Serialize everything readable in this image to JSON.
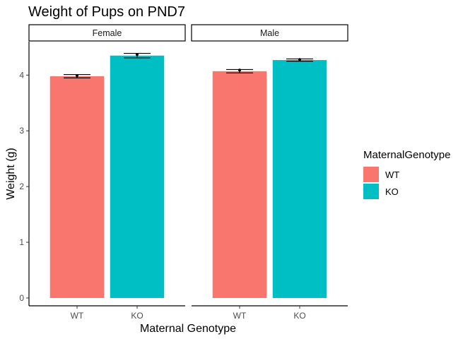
{
  "chart_data": {
    "type": "bar",
    "title": "Weight of Pups on PND7",
    "xlabel": "Maternal Genotype",
    "ylabel": "Weight (g)",
    "ylim": [
      -0.14,
      4.6
    ],
    "yticks": [
      0,
      1,
      2,
      3,
      4
    ],
    "categories": [
      "WT",
      "KO"
    ],
    "facets": [
      {
        "name": "Female",
        "values": [
          3.98,
          4.35
        ],
        "errors": [
          0.03,
          0.04
        ],
        "point_values": [
          3.99,
          4.37
        ]
      },
      {
        "name": "Male",
        "values": [
          4.07,
          4.27
        ],
        "errors": [
          0.03,
          0.02
        ],
        "point_values": [
          4.09,
          4.28
        ]
      }
    ],
    "legend": {
      "title": "MaternalGenotype",
      "placement": "right",
      "entries": [
        {
          "label": "WT",
          "color": "#F8766D"
        },
        {
          "label": "KO",
          "color": "#00BFC4"
        }
      ]
    },
    "grid": false
  }
}
